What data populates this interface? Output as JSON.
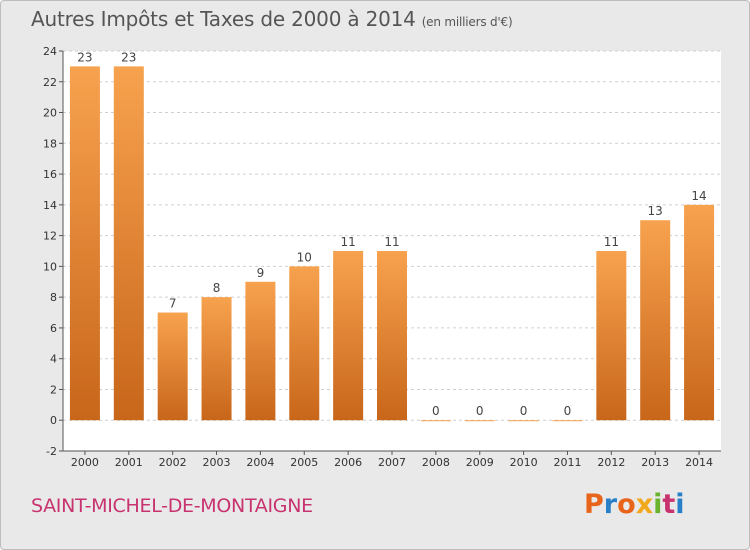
{
  "header": {
    "title": "Autres Impôts et Taxes de 2000 à 2014",
    "subtitle": "(en milliers d'€)"
  },
  "footer": {
    "commune": "SAINT-MICHEL-DE-MONTAIGNE",
    "logo_text": "Proxiti"
  },
  "colors": {
    "bar_light": "#f7a24e",
    "bar_dark": "#c8661a",
    "background": "#e9e9e9",
    "plot_background": "#ffffff",
    "title": "#555555",
    "commune": "#c8336f"
  },
  "chart_data": {
    "type": "bar",
    "title": "Autres Impôts et Taxes de 2000 à 2014",
    "subtitle": "(en milliers d'€)",
    "categories": [
      "2000",
      "2001",
      "2002",
      "2003",
      "2004",
      "2005",
      "2006",
      "2007",
      "2008",
      "2009",
      "2010",
      "2011",
      "2012",
      "2013",
      "2014"
    ],
    "values": [
      23,
      23,
      7,
      8,
      9,
      10,
      11,
      11,
      0,
      0,
      0,
      0,
      11,
      13,
      14
    ],
    "ylim": [
      -2,
      24
    ],
    "yticks": [
      -2,
      0,
      2,
      4,
      6,
      8,
      10,
      12,
      14,
      16,
      18,
      20,
      22,
      24
    ],
    "grid": true,
    "data_labels": true
  }
}
